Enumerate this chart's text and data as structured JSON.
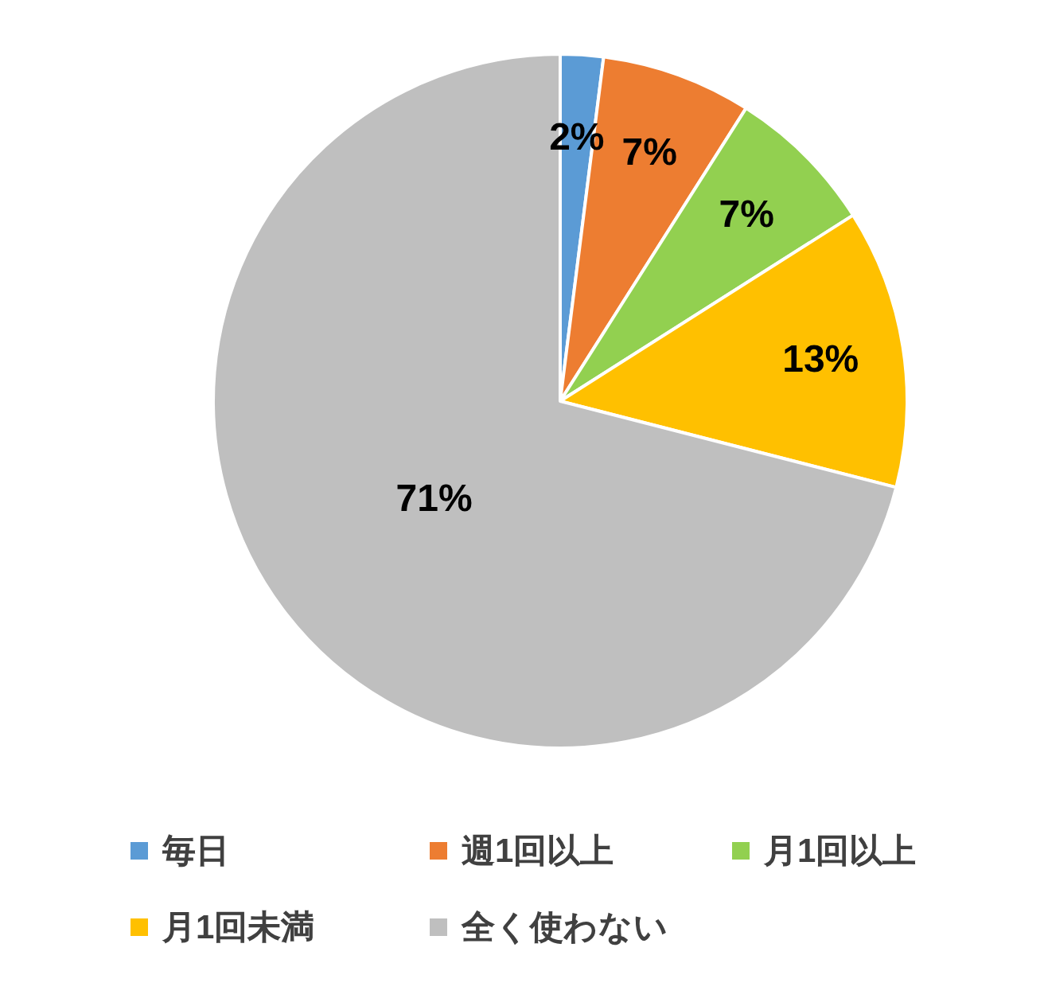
{
  "chart_data": {
    "type": "pie",
    "categories": [
      "毎日",
      "週1回以上",
      "月1回以上",
      "月1回未満",
      "全く使わない"
    ],
    "values": [
      2,
      7,
      7,
      13,
      71
    ],
    "colors": [
      "#5b9bd5",
      "#ed7d31",
      "#92d050",
      "#ffc000",
      "#bfbfbf"
    ],
    "value_labels": [
      "2%",
      "7%",
      "7%",
      "13%",
      "71%"
    ],
    "legend": "bottom"
  }
}
